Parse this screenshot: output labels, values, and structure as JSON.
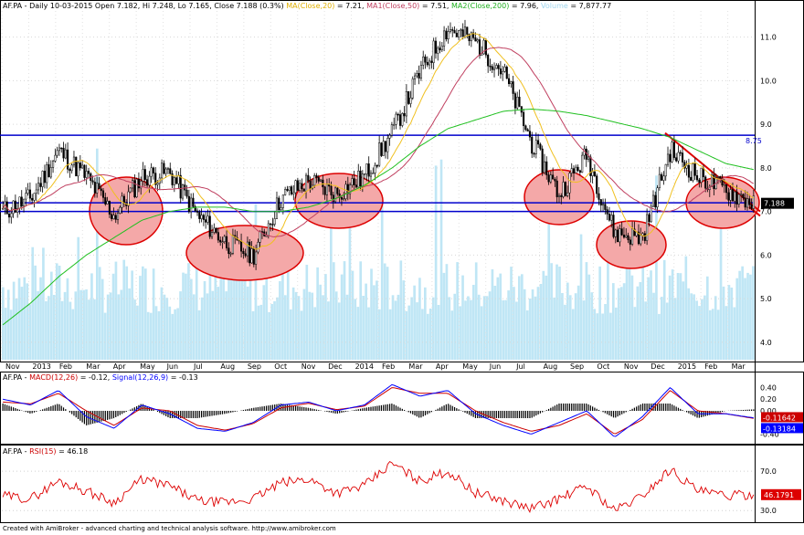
{
  "header": {
    "symbol": "AF.PA",
    "info": "- Daily 10-03-2015 Open 7.182, Hi 7.248, Lo 7.165, Close 7.188 (0.3%)",
    "ma_label": "MA(Close,20)",
    "ma_value": "= 7.21,",
    "ma1_label": "MA1(Close,50)",
    "ma1_value": "= 7.51,",
    "ma2_label": "MA2(Close,200)",
    "ma2_value": "= 7.96,",
    "vol_label": "Volume",
    "vol_value": "= 7,877.77"
  },
  "macd_header": {
    "symbol": "AF.PA",
    "macd_label": "MACD(12,26)",
    "macd_value": "= -0.12,",
    "signal_label": "Signal(12,26,9)",
    "signal_value": "= -0.13"
  },
  "rsi_header": {
    "symbol": "AF.PA",
    "rsi_label": "RSI(15)",
    "rsi_value": "= 46.18"
  },
  "footer": "Created with AmiBroker - advanced charting and technical analysis software. http://www.amibroker.com",
  "colors": {
    "price": "#000000",
    "ma20": "#f0c020",
    "ma50": "#c04060",
    "ma200": "#20c020",
    "volume": "#bfe6f5",
    "hline": "#0000cc",
    "ellipse_fill": "#f4a8a8",
    "ellipse_stroke": "#dd0000",
    "trend": "#dd0000",
    "macd": "#0000ff",
    "signal": "#cc0000",
    "rsi": "#dd0000"
  },
  "chart_data": [
    {
      "type": "candlestick",
      "panel": "price",
      "title": "AF.PA - Daily 10-03-2015",
      "y_ticks": [
        "11.0",
        "10.0",
        "9.0",
        "8.0",
        "7.0",
        "6.0",
        "5.0",
        "4.0"
      ],
      "ylim": [
        3.6,
        11.6
      ],
      "x_labels": [
        "Nov",
        "2013",
        "Feb",
        "Mar",
        "Apr",
        "May",
        "Jun",
        "Jul",
        "Aug",
        "Sep",
        "Oct",
        "Nov",
        "Dec",
        "2014",
        "Feb",
        "Mar",
        "Apr",
        "May",
        "Jun",
        "Jul",
        "Aug",
        "Sep",
        "Oct",
        "Nov",
        "Dec",
        "2015",
        "Feb",
        "Mar"
      ],
      "month_close_approx": [
        7.0,
        7.3,
        8.4,
        7.8,
        6.9,
        7.8,
        7.9,
        6.9,
        6.3,
        6.0,
        7.3,
        7.7,
        7.4,
        7.8,
        8.8,
        10.2,
        11.2,
        10.9,
        10.2,
        8.6,
        7.4,
        8.3,
        6.5,
        6.4,
        8.4,
        7.8,
        7.5,
        7.188
      ],
      "horizontal_lines": [
        {
          "value": 8.75,
          "label": "8.75"
        },
        {
          "value": 7.2,
          "label": ""
        },
        {
          "value": 7.0,
          "label": ""
        }
      ],
      "last_price_label": "7.188",
      "ma200_approx": [
        4.4,
        4.9,
        5.5,
        6.0,
        6.4,
        6.8,
        7.0,
        7.1,
        7.1,
        7.0,
        7.0,
        7.1,
        7.3,
        7.6,
        8.0,
        8.5,
        8.9,
        9.1,
        9.3,
        9.35,
        9.3,
        9.2,
        9.05,
        8.9,
        8.7,
        8.4,
        8.1,
        7.96
      ],
      "volume": "background bars"
    },
    {
      "type": "line",
      "panel": "macd",
      "y_ticks": [
        "0.40",
        "0.20",
        "0.00",
        "-0.40"
      ],
      "ylim": [
        -0.5,
        0.5
      ],
      "value_tags": [
        "-0.11642",
        "-0.13184"
      ],
      "series": [
        {
          "name": "MACD(12,26)",
          "values": [
            0.2,
            0.1,
            0.35,
            -0.1,
            -0.3,
            0.1,
            -0.05,
            -0.3,
            -0.35,
            -0.2,
            0.1,
            0.15,
            0.0,
            0.1,
            0.45,
            0.25,
            0.35,
            -0.05,
            -0.25,
            -0.4,
            -0.2,
            0.0,
            -0.45,
            -0.1,
            0.4,
            -0.05,
            -0.05,
            -0.12
          ]
        },
        {
          "name": "Signal(12,26,9)",
          "values": [
            0.15,
            0.12,
            0.3,
            0.0,
            -0.25,
            0.05,
            0.0,
            -0.25,
            -0.33,
            -0.22,
            0.05,
            0.13,
            0.02,
            0.08,
            0.4,
            0.3,
            0.3,
            0.0,
            -0.2,
            -0.35,
            -0.25,
            -0.05,
            -0.4,
            -0.15,
            0.35,
            0.0,
            -0.05,
            -0.13
          ]
        }
      ]
    },
    {
      "type": "line",
      "panel": "rsi",
      "y_ticks": [
        "70.0",
        "30.0"
      ],
      "ylim": [
        20,
        85
      ],
      "value_tag": "46.1791",
      "series": [
        {
          "name": "RSI(15)",
          "values": [
            45,
            42,
            60,
            50,
            38,
            62,
            55,
            40,
            38,
            42,
            58,
            62,
            48,
            55,
            78,
            60,
            70,
            48,
            40,
            32,
            42,
            55,
            30,
            45,
            72,
            50,
            45,
            46.18
          ]
        }
      ]
    }
  ]
}
